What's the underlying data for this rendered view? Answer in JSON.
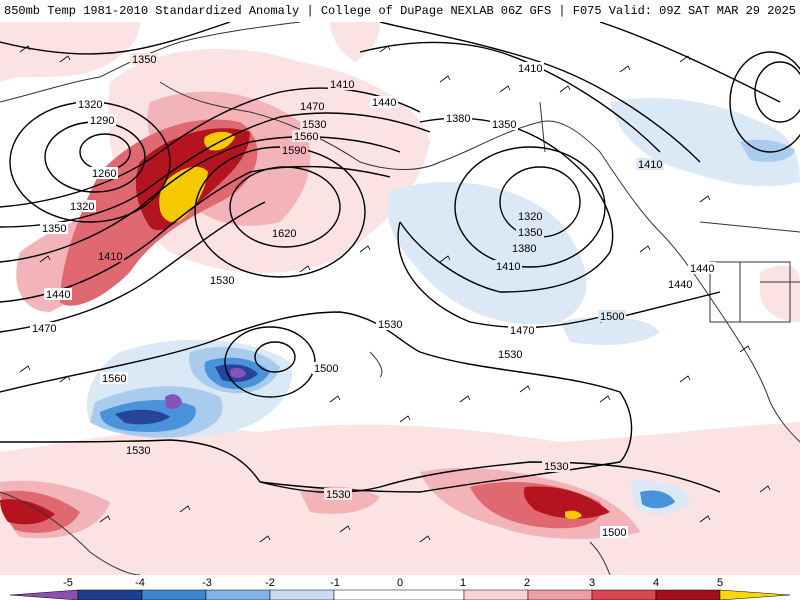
{
  "header": {
    "title_left": "850mb Temp 1981-2010 Standardized Anomaly | College of DuPage NEXLAB",
    "title_right": "06Z GFS | F075 Valid: 09Z SAT MAR 29 2025"
  },
  "contour_labels": [
    {
      "text": "1350"
    },
    {
      "text": "1320"
    },
    {
      "text": "1290"
    },
    {
      "text": "1260"
    },
    {
      "text": "1320"
    },
    {
      "text": "1350"
    },
    {
      "text": "1410"
    },
    {
      "text": "1440"
    },
    {
      "text": "1470"
    },
    {
      "text": "1560"
    },
    {
      "text": "1410"
    },
    {
      "text": "1440"
    },
    {
      "text": "1470"
    },
    {
      "text": "1530"
    },
    {
      "text": "1560"
    },
    {
      "text": "1590"
    },
    {
      "text": "1620"
    },
    {
      "text": "1530"
    },
    {
      "text": "1500"
    },
    {
      "text": "1530"
    },
    {
      "text": "1530"
    },
    {
      "text": "1530"
    },
    {
      "text": "1530"
    },
    {
      "text": "1380"
    },
    {
      "text": "1350"
    },
    {
      "text": "1410"
    },
    {
      "text": "1320"
    },
    {
      "text": "1350"
    },
    {
      "text": "1380"
    },
    {
      "text": "1410"
    },
    {
      "text": "1440"
    },
    {
      "text": "1470"
    },
    {
      "text": "1500"
    },
    {
      "text": "1410"
    },
    {
      "text": "1440"
    },
    {
      "text": "1500"
    },
    {
      "text": "1530"
    }
  ],
  "colorbar": {
    "ticks": [
      "-5",
      "-4",
      "-3",
      "-2",
      "-1",
      "0",
      "1",
      "2",
      "3",
      "4",
      "5"
    ],
    "colors": {
      "m5": "#8e4fb5",
      "m4": "#1d3f8f",
      "m3": "#3a86d0",
      "m2": "#7fb6e6",
      "m1": "#c7dcf2",
      "zero": "#ffffff",
      "p1": "#f7d3d6",
      "p2": "#ee9fa5",
      "p3": "#d9464f",
      "p4": "#a5101e",
      "p5": "#ffd700"
    }
  },
  "anomaly_colors": {
    "neg_light": "#dbe8f6",
    "neg_mid": "#a9cbee",
    "neg_strong": "#4a92d9",
    "neg_deep": "#24459a",
    "neg_extreme": "#8552b8",
    "pos_light": "#fbe2e3",
    "pos_mid": "#f2b4b8",
    "pos_strong": "#e06870",
    "pos_deep": "#b3141f",
    "pos_extreme": "#f5c800"
  }
}
